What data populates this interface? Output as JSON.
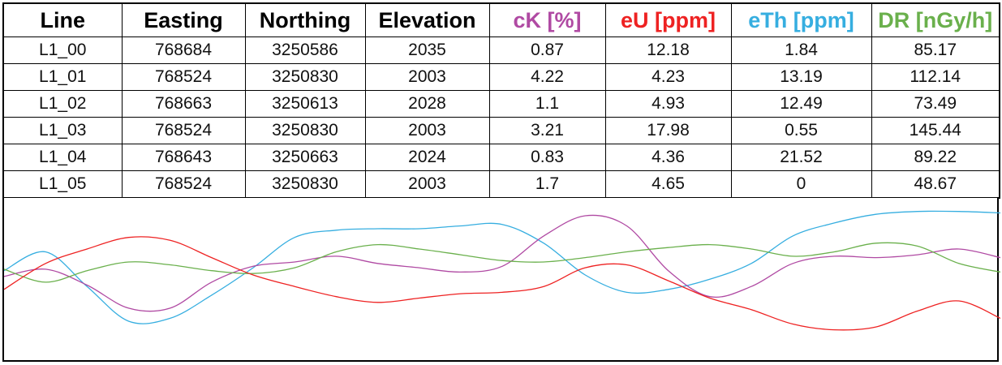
{
  "table": {
    "headers": [
      {
        "label": "Line",
        "color": "#000000"
      },
      {
        "label": "Easting",
        "color": "#000000"
      },
      {
        "label": "Northing",
        "color": "#000000"
      },
      {
        "label": "Elevation",
        "color": "#000000"
      },
      {
        "label": "cK [%]",
        "color": "#b04aa3"
      },
      {
        "label": "eU [ppm]",
        "color": "#ee2222"
      },
      {
        "label": "eTh [ppm]",
        "color": "#36aee0"
      },
      {
        "label": "DR [nGy/h]",
        "color": "#6ab04c"
      }
    ],
    "rows": [
      [
        "L1_00",
        "768684",
        "3250586",
        "2035",
        "0.87",
        "12.18",
        "1.84",
        "85.17"
      ],
      [
        "L1_01",
        "768524",
        "3250830",
        "2003",
        "4.22",
        "4.23",
        "13.19",
        "112.14"
      ],
      [
        "L1_02",
        "768663",
        "3250613",
        "2028",
        "1.1",
        "4.93",
        "12.49",
        "73.49"
      ],
      [
        "L1_03",
        "768524",
        "3250830",
        "2003",
        "3.21",
        "17.98",
        "0.55",
        "145.44"
      ],
      [
        "L1_04",
        "768643",
        "3250663",
        "2024",
        "0.83",
        "4.36",
        "21.52",
        "89.22"
      ],
      [
        "L1_05",
        "768524",
        "3250830",
        "2003",
        "1.7",
        "4.65",
        "0",
        "48.67"
      ]
    ]
  },
  "chart_data": {
    "type": "line",
    "smooth": true,
    "axes_visible": false,
    "grid": false,
    "legend": "none",
    "x": [
      0,
      1,
      2,
      3,
      4,
      5,
      6,
      7,
      8,
      9,
      10,
      11,
      12,
      13,
      14,
      15,
      16,
      17,
      18,
      19,
      20,
      21,
      22,
      23,
      24
    ],
    "y_range": [
      0,
      1
    ],
    "series": [
      {
        "color": "#36aee0",
        "values": [
          0.53,
          0.66,
          0.42,
          0.18,
          0.2,
          0.36,
          0.55,
          0.76,
          0.81,
          0.82,
          0.82,
          0.84,
          0.85,
          0.72,
          0.5,
          0.38,
          0.4,
          0.47,
          0.58,
          0.77,
          0.86,
          0.92,
          0.94,
          0.94,
          0.93
        ]
      },
      {
        "color": "#b04aa3",
        "values": [
          0.49,
          0.54,
          0.43,
          0.27,
          0.27,
          0.45,
          0.56,
          0.59,
          0.63,
          0.58,
          0.55,
          0.52,
          0.56,
          0.77,
          0.91,
          0.84,
          0.53,
          0.35,
          0.42,
          0.58,
          0.63,
          0.62,
          0.64,
          0.68,
          0.62
        ]
      },
      {
        "color": "#6ab04c",
        "values": [
          0.54,
          0.45,
          0.53,
          0.59,
          0.57,
          0.53,
          0.51,
          0.55,
          0.66,
          0.71,
          0.68,
          0.64,
          0.6,
          0.59,
          0.62,
          0.66,
          0.69,
          0.71,
          0.68,
          0.63,
          0.66,
          0.72,
          0.7,
          0.58,
          0.52
        ]
      },
      {
        "color": "#ee2222",
        "values": [
          0.4,
          0.58,
          0.68,
          0.76,
          0.74,
          0.62,
          0.5,
          0.42,
          0.35,
          0.31,
          0.34,
          0.37,
          0.38,
          0.42,
          0.55,
          0.57,
          0.46,
          0.34,
          0.26,
          0.16,
          0.12,
          0.14,
          0.25,
          0.32,
          0.2
        ]
      }
    ]
  }
}
